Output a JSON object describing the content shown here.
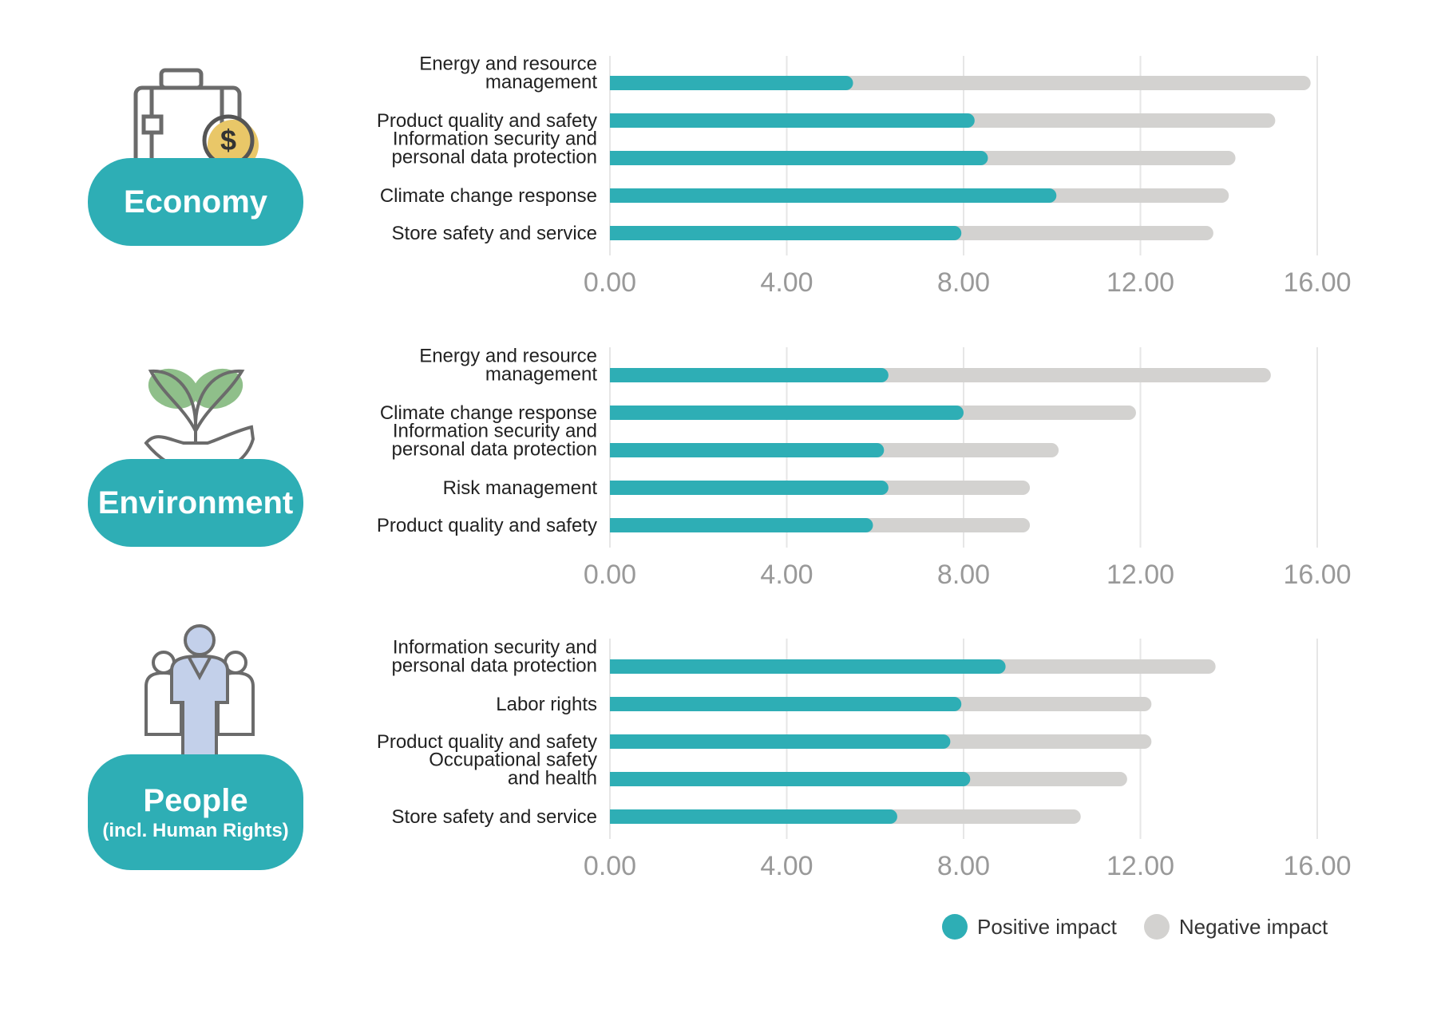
{
  "colors": {
    "positive": "#2eaeb5",
    "negative": "#d3d2d0",
    "grid": "#e6e6e6",
    "accent": "#2eaeb5"
  },
  "legend": {
    "positive": "Positive impact",
    "negative": "Negative impact"
  },
  "panels": [
    {
      "title": "Economy",
      "subtitle": "",
      "icon": "briefcase-coin-icon"
    },
    {
      "title": "Environment",
      "subtitle": "",
      "icon": "plant-hand-icon"
    },
    {
      "title": "People",
      "subtitle": "(incl. Human Rights)",
      "icon": "people-group-icon"
    }
  ],
  "chart_data": [
    {
      "type": "bar",
      "orientation": "horizontal",
      "stacked": false,
      "categories": [
        [
          "Energy and resource",
          "management"
        ],
        [
          "Product quality and safety"
        ],
        [
          "Information security and",
          "personal data protection"
        ],
        [
          "Climate change response"
        ],
        [
          "Store safety and service"
        ]
      ],
      "series": [
        {
          "name": "Positive impact",
          "values": [
            5.5,
            8.25,
            8.55,
            10.1,
            7.95
          ]
        },
        {
          "name": "Negative impact",
          "values": [
            15.85,
            15.05,
            14.15,
            14.0,
            13.65
          ]
        }
      ],
      "xlim": [
        0,
        16
      ],
      "xticks": [
        "0.00",
        "4.00",
        "8.00",
        "12.00",
        "16.00"
      ]
    },
    {
      "type": "bar",
      "orientation": "horizontal",
      "stacked": false,
      "categories": [
        [
          "Energy and resource",
          "management"
        ],
        [
          "Climate change response"
        ],
        [
          "Information security and",
          "personal data protection"
        ],
        [
          "Risk management"
        ],
        [
          "Product quality and safety"
        ]
      ],
      "series": [
        {
          "name": "Positive impact",
          "values": [
            6.3,
            8.0,
            6.2,
            6.3,
            5.95
          ]
        },
        {
          "name": "Negative impact",
          "values": [
            14.95,
            11.9,
            10.15,
            9.5,
            9.5
          ]
        }
      ],
      "xlim": [
        0,
        16
      ],
      "xticks": [
        "0.00",
        "4.00",
        "8.00",
        "12.00",
        "16.00"
      ]
    },
    {
      "type": "bar",
      "orientation": "horizontal",
      "stacked": false,
      "categories": [
        [
          "Information security and",
          "personal data protection"
        ],
        [
          "Labor rights"
        ],
        [
          "Product quality and safety"
        ],
        [
          "Occupational safety",
          "and health"
        ],
        [
          "Store safety and service"
        ]
      ],
      "series": [
        {
          "name": "Positive impact",
          "values": [
            8.95,
            7.95,
            7.7,
            8.15,
            6.5
          ]
        },
        {
          "name": "Negative impact",
          "values": [
            13.7,
            12.25,
            12.25,
            11.7,
            10.65
          ]
        }
      ],
      "xlim": [
        0,
        16
      ],
      "xticks": [
        "0.00",
        "4.00",
        "8.00",
        "12.00",
        "16.00"
      ]
    }
  ]
}
